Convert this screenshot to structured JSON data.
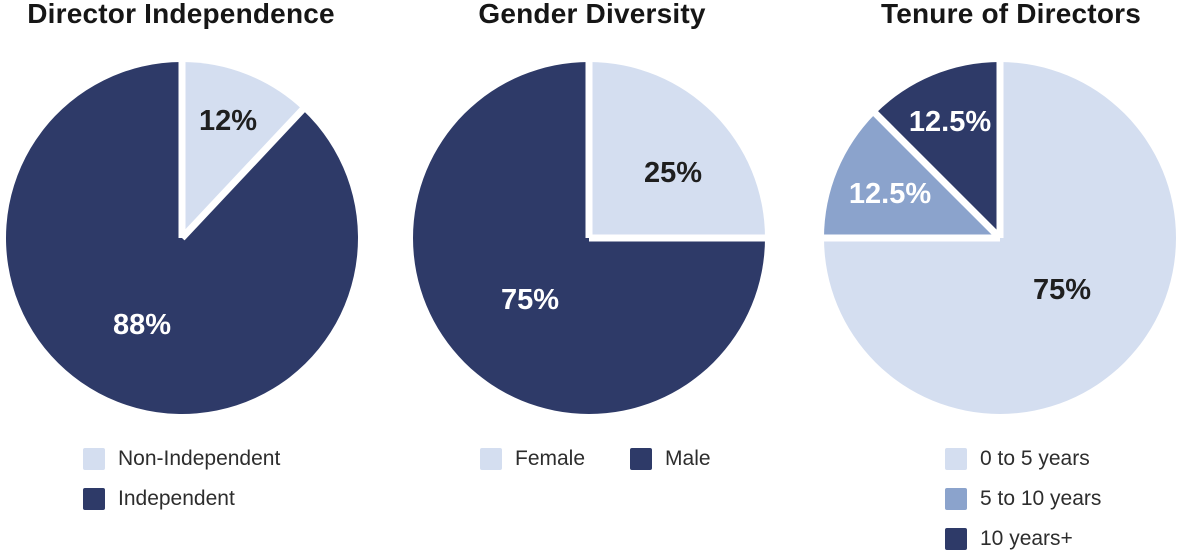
{
  "page": {
    "background_color": "#ffffff"
  },
  "chart_data": [
    {
      "type": "pie",
      "title": "Director Independence",
      "labels": [
        "Non-Independent",
        "Independent"
      ],
      "values": [
        12,
        88
      ],
      "value_labels": [
        "12%",
        "88%"
      ],
      "colors": [
        "#d4def0",
        "#2e3a68"
      ],
      "value_label_colors": [
        "#1f1f1f",
        "#ffffff"
      ],
      "start_angle_deg": 0,
      "direction": "clockwise",
      "slice_gap_color": "#ffffff",
      "legend_position": "below",
      "legend_layout": "vertical"
    },
    {
      "type": "pie",
      "title": "Gender Diversity",
      "labels": [
        "Female",
        "Male"
      ],
      "values": [
        25,
        75
      ],
      "value_labels": [
        "25%",
        "75%"
      ],
      "colors": [
        "#d4def0",
        "#2e3a68"
      ],
      "value_label_colors": [
        "#1f1f1f",
        "#ffffff"
      ],
      "start_angle_deg": 0,
      "direction": "clockwise",
      "slice_gap_color": "#ffffff",
      "legend_position": "below",
      "legend_layout": "horizontal"
    },
    {
      "type": "pie",
      "title": "Tenure of Directors",
      "labels": [
        "0 to 5 years",
        "5 to 10 years",
        "10 years+"
      ],
      "values": [
        75,
        12.5,
        12.5
      ],
      "value_labels": [
        "75%",
        "12.5%",
        "12.5%"
      ],
      "colors": [
        "#d4def0",
        "#8ba3cc",
        "#2e3a68"
      ],
      "value_label_colors": [
        "#1f1f1f",
        "#ffffff",
        "#ffffff"
      ],
      "start_angle_deg": 0,
      "direction": "clockwise",
      "slice_gap_color": "#ffffff",
      "legend_position": "below",
      "legend_layout": "vertical"
    }
  ]
}
